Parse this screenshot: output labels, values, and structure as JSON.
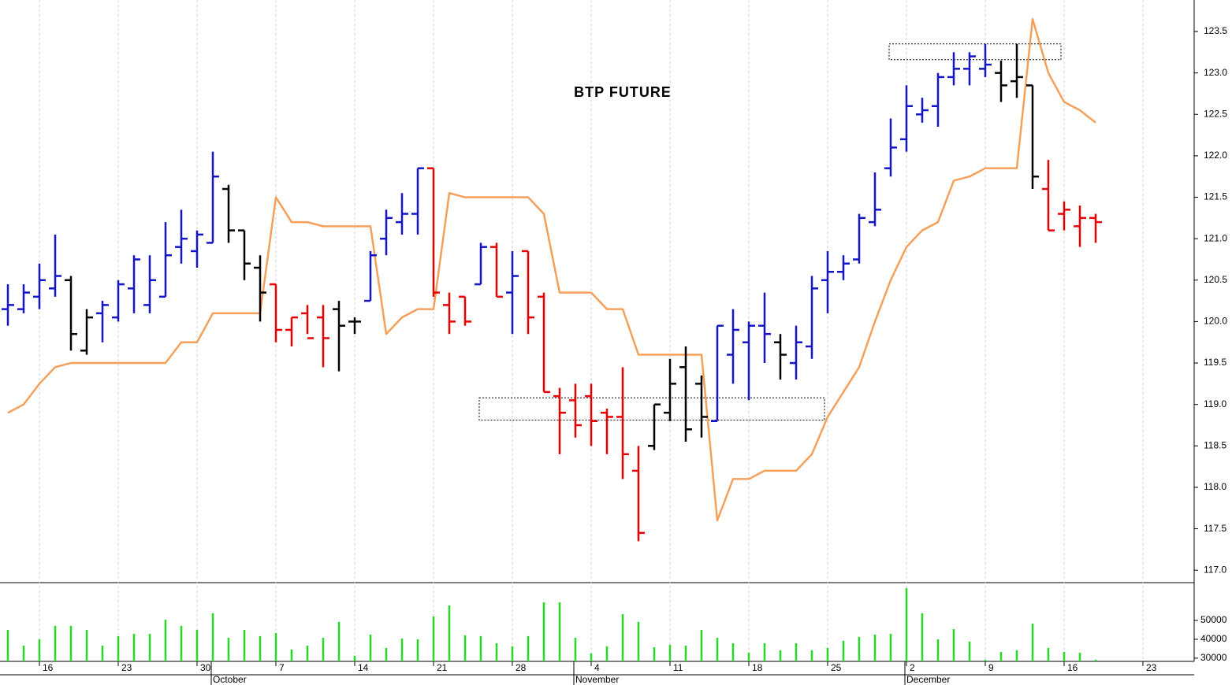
{
  "chart_data": {
    "type": "ohlc",
    "title": "BTP FUTURE",
    "categories": [
      null,
      null,
      "16",
      null,
      null,
      null,
      null,
      "23",
      null,
      null,
      null,
      null,
      "30",
      null,
      null,
      null,
      null,
      "7",
      null,
      null,
      null,
      null,
      "14",
      null,
      null,
      null,
      null,
      "21",
      null,
      null,
      null,
      null,
      "28",
      null,
      null,
      null,
      null,
      "4",
      null,
      null,
      null,
      null,
      "11",
      null,
      null,
      null,
      null,
      "18",
      null,
      null,
      null,
      null,
      "25",
      null,
      null,
      null,
      null,
      "2",
      null,
      null,
      null,
      null,
      "9",
      null,
      null,
      null,
      null,
      "16",
      null,
      null,
      null,
      null,
      "23",
      null,
      null,
      null
    ],
    "month_labels": [
      null,
      null,
      null,
      null,
      null,
      null,
      null,
      null,
      null,
      null,
      null,
      null,
      null,
      "October",
      null,
      null,
      null,
      null,
      null,
      null,
      null,
      null,
      null,
      null,
      null,
      null,
      null,
      null,
      null,
      null,
      null,
      null,
      null,
      null,
      null,
      null,
      "November",
      null,
      null,
      null,
      null,
      null,
      null,
      null,
      null,
      null,
      null,
      null,
      null,
      null,
      null,
      null,
      null,
      null,
      null,
      null,
      null,
      "December",
      null,
      null,
      null,
      null,
      null,
      null,
      null,
      null,
      null,
      null,
      null,
      null,
      null,
      null,
      null,
      null,
      null,
      null
    ],
    "open": [
      120.15,
      120.15,
      120.3,
      120.4,
      120.5,
      119.65,
      120.1,
      120.05,
      120.4,
      120.2,
      120.3,
      120.9,
      120.85,
      120.95,
      121.6,
      121.1,
      120.65,
      120.45,
      119.9,
      120.1,
      120.05,
      120.15,
      120.0,
      120.25,
      121.0,
      121.2,
      121.3,
      121.85,
      120.2,
      120.3,
      120.45,
      120.9,
      120.35,
      120.85,
      120.3,
      119.1,
      119.05,
      119.1,
      118.9,
      118.85,
      118.2,
      118.5,
      118.9,
      119.45,
      119.25,
      118.8,
      119.6,
      119.75,
      119.95,
      119.75,
      119.5,
      119.7,
      120.5,
      120.6,
      120.75,
      121.2,
      121.85,
      122.2,
      122.5,
      122.6,
      122.95,
      123.05,
      123.05,
      123.0,
      122.9,
      122.85,
      121.6,
      121.3,
      121.15,
      121.25,
      null,
      null,
      null,
      null,
      null,
      null
    ],
    "high": [
      120.45,
      120.45,
      120.7,
      121.05,
      120.55,
      120.15,
      120.25,
      120.5,
      120.8,
      120.8,
      121.2,
      121.35,
      121.1,
      122.05,
      121.65,
      121.1,
      120.8,
      120.45,
      120.05,
      120.2,
      120.2,
      120.25,
      120.05,
      120.85,
      121.35,
      121.55,
      121.85,
      121.85,
      120.35,
      120.3,
      120.95,
      120.95,
      120.85,
      120.85,
      120.35,
      119.2,
      119.25,
      119.25,
      118.95,
      119.45,
      118.5,
      119.0,
      119.55,
      119.7,
      119.35,
      119.95,
      120.15,
      120.0,
      120.35,
      119.85,
      119.95,
      120.55,
      120.85,
      120.8,
      121.3,
      121.8,
      122.45,
      122.85,
      122.7,
      123.0,
      123.25,
      123.25,
      123.35,
      123.15,
      123.35,
      122.85,
      121.95,
      121.45,
      121.4,
      121.3,
      null,
      null,
      null,
      null,
      null,
      null
    ],
    "low": [
      119.95,
      120.1,
      120.15,
      120.3,
      119.65,
      119.6,
      119.75,
      120.0,
      120.1,
      120.1,
      120.3,
      120.7,
      120.65,
      120.95,
      120.95,
      120.5,
      120.0,
      119.75,
      119.7,
      119.85,
      119.45,
      119.4,
      119.85,
      120.25,
      120.8,
      121.05,
      121.05,
      120.3,
      119.85,
      119.95,
      120.45,
      120.3,
      119.85,
      119.85,
      119.15,
      118.4,
      118.6,
      118.5,
      118.4,
      118.1,
      117.35,
      118.45,
      118.8,
      118.55,
      118.6,
      118.8,
      119.25,
      119.05,
      119.5,
      119.3,
      119.3,
      119.55,
      120.1,
      120.5,
      120.7,
      121.15,
      121.75,
      122.05,
      122.4,
      122.35,
      122.85,
      122.85,
      122.95,
      122.65,
      122.7,
      121.6,
      121.1,
      121.1,
      120.9,
      120.95,
      null,
      null,
      null,
      null,
      null,
      null
    ],
    "close": [
      120.2,
      120.35,
      120.5,
      120.55,
      119.85,
      120.05,
      120.2,
      120.45,
      120.75,
      120.5,
      120.8,
      121.0,
      121.05,
      121.75,
      121.1,
      120.7,
      120.35,
      119.9,
      120.05,
      119.8,
      119.8,
      119.95,
      120.0,
      120.8,
      121.25,
      121.3,
      121.85,
      120.35,
      120.0,
      120.0,
      120.9,
      120.3,
      120.55,
      120.05,
      119.15,
      118.9,
      118.75,
      118.8,
      118.85,
      118.4,
      117.45,
      119.0,
      119.25,
      118.7,
      118.85,
      119.95,
      119.9,
      119.95,
      119.85,
      119.6,
      119.75,
      120.4,
      120.6,
      120.7,
      121.25,
      121.35,
      122.1,
      122.6,
      122.55,
      122.95,
      123.05,
      123.2,
      123.1,
      122.85,
      122.95,
      121.75,
      121.1,
      121.35,
      121.25,
      121.2,
      null,
      null,
      null,
      null,
      null,
      null
    ],
    "bar_colors": [
      "#1414c8",
      "#1414c8",
      "#1414c8",
      "#1414c8",
      "#000000",
      "#000000",
      "#1414c8",
      "#1414c8",
      "#1414c8",
      "#1414c8",
      "#1414c8",
      "#1414c8",
      "#1414c8",
      "#1414c8",
      "#000000",
      "#000000",
      "#000000",
      "#e80000",
      "#e80000",
      "#e80000",
      "#e80000",
      "#000000",
      "#000000",
      "#1414c8",
      "#1414c8",
      "#1414c8",
      "#1414c8",
      "#e80000",
      "#e80000",
      "#e80000",
      "#1414c8",
      "#e80000",
      "#1414c8",
      "#e80000",
      "#e80000",
      "#e80000",
      "#e80000",
      "#e80000",
      "#e80000",
      "#e80000",
      "#e80000",
      "#000000",
      "#000000",
      "#000000",
      "#000000",
      "#1414c8",
      "#1414c8",
      "#1414c8",
      "#1414c8",
      "#000000",
      "#1414c8",
      "#1414c8",
      "#1414c8",
      "#1414c8",
      "#1414c8",
      "#1414c8",
      "#1414c8",
      "#1414c8",
      "#1414c8",
      "#1414c8",
      "#1414c8",
      "#1414c8",
      "#1414c8",
      "#000000",
      "#000000",
      "#000000",
      "#e80000",
      "#e80000",
      "#e80000",
      "#e80000",
      null,
      null,
      null,
      null,
      null,
      null
    ],
    "line": {
      "color": "#f5a05a",
      "values": [
        118.9,
        119.0,
        119.25,
        119.45,
        119.5,
        119.5,
        119.5,
        119.5,
        119.5,
        119.5,
        119.5,
        119.75,
        119.75,
        120.1,
        120.1,
        120.1,
        120.1,
        121.5,
        121.2,
        121.2,
        121.15,
        121.15,
        121.15,
        121.15,
        119.85,
        120.05,
        120.15,
        120.15,
        121.55,
        121.5,
        121.5,
        121.5,
        121.5,
        121.5,
        121.3,
        120.35,
        120.35,
        120.35,
        120.15,
        120.15,
        119.6,
        119.6,
        119.6,
        119.6,
        119.6,
        117.6,
        118.1,
        118.1,
        118.2,
        118.2,
        118.2,
        118.4,
        118.85,
        119.15,
        119.45,
        120.0,
        120.5,
        120.9,
        121.1,
        121.2,
        121.7,
        121.75,
        121.85,
        121.85,
        121.85,
        123.65,
        123.0,
        122.65,
        122.55,
        122.4,
        null,
        null,
        null,
        null,
        null,
        null
      ]
    },
    "ylim": [
      116.85,
      123.88
    ],
    "yticks": [
      {
        "value": 117,
        "label": "117.0"
      },
      117.5,
      {
        "value": 118,
        "label": "118.0"
      },
      118.5,
      {
        "value": 119,
        "label": "119.0"
      },
      119.5,
      {
        "value": 120,
        "label": "120.0"
      },
      120.5,
      {
        "value": 121,
        "label": "121.0"
      },
      121.5,
      {
        "value": 122,
        "label": "122.0"
      },
      122.5,
      {
        "value": 123,
        "label": "123.0"
      },
      123.5
    ],
    "zones": [
      {
        "low": 118.81,
        "high": 119.08,
        "from": 30,
        "to": 52
      },
      {
        "low": 123.16,
        "high": 123.35,
        "from": 56,
        "to": 67
      }
    ],
    "volume": {
      "color": "#22dd22",
      "ylim": [
        28300,
        70000
      ],
      "yticks": [
        30000,
        40000,
        50000
      ],
      "values": [
        45000,
        36700,
        40000,
        47100,
        47100,
        45000,
        36700,
        41700,
        42900,
        42900,
        50400,
        47100,
        45000,
        53800,
        40800,
        45000,
        41700,
        43300,
        34600,
        36700,
        40800,
        49200,
        31300,
        42500,
        35400,
        40400,
        40000,
        52100,
        57900,
        42100,
        41700,
        37900,
        36300,
        41700,
        59600,
        59600,
        40800,
        32500,
        36300,
        53300,
        49200,
        35800,
        37100,
        36700,
        45000,
        40800,
        37900,
        32900,
        37900,
        34200,
        37900,
        34200,
        35400,
        39200,
        41300,
        42500,
        42900,
        67100,
        53800,
        40000,
        45400,
        38800,
        29200,
        33300,
        34200,
        48300,
        35400,
        33300,
        32900,
        29200,
        null,
        null,
        null,
        null,
        null,
        null
      ]
    }
  }
}
